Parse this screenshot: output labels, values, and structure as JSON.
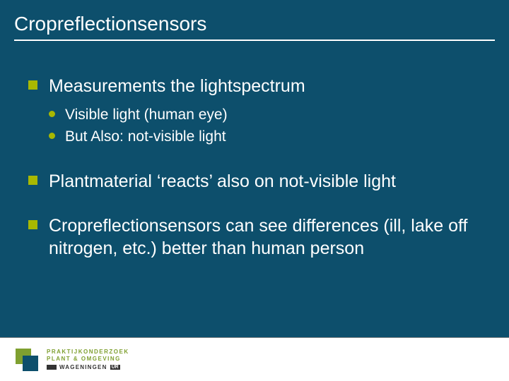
{
  "colors": {
    "background": "#0d4f6c",
    "text": "#ffffff",
    "bullet": "#a8b800",
    "footer_bg": "#ffffff",
    "logo_green": "#7fa030",
    "logo_dark": "#0d4f6c"
  },
  "title": "Cropreflectionsensors",
  "items": [
    {
      "text": "Measurements the lightspectrum",
      "sub": [
        "Visible light (human eye)",
        "But Also: not-visible light"
      ]
    },
    {
      "text": "Plantmaterial ‘reacts’ also on not-visible light",
      "sub": []
    },
    {
      "text": "Cropreflectionsensors can see differences (ill, lake off nitrogen, etc.) better than human person",
      "sub": []
    }
  ],
  "footer": {
    "line1": "PRAKTIJKONDERZOEK",
    "line2": "PLANT & OMGEVING",
    "wageningen": "WAGENINGEN",
    "ur": "UR"
  }
}
